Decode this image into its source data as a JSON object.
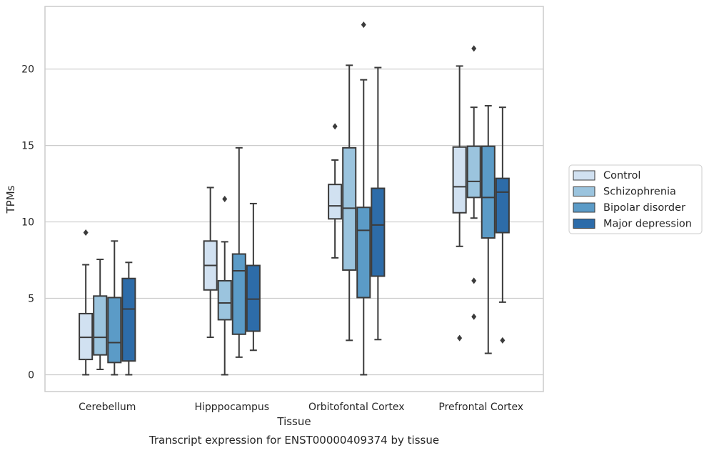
{
  "chart_data": {
    "type": "box",
    "categories": [
      "Cerebellum",
      "Hipppocampus",
      "Orbitofontal Cortex",
      "Prefrontal Cortex"
    ],
    "xlabel": "Tissue",
    "ylabel": "TPMs",
    "caption": "Transcript expression for ENST00000409374 by tissue",
    "ylim": [
      -1.1,
      24.1
    ],
    "yticks": [
      0,
      5,
      10,
      15,
      20
    ],
    "grid": "y",
    "legend_position": "right",
    "series": [
      {
        "name": "Control",
        "color": "#d1e1f1",
        "boxes": [
          {
            "whislo": 0.0,
            "q1": 1.0,
            "med": 2.45,
            "q3": 4.0,
            "whishi": 7.2,
            "fliers": [
              9.3
            ]
          },
          {
            "whislo": 2.45,
            "q1": 5.55,
            "med": 7.15,
            "q3": 8.75,
            "whishi": 12.25,
            "fliers": []
          },
          {
            "whislo": 7.65,
            "q1": 10.2,
            "med": 11.05,
            "q3": 12.45,
            "whishi": 14.05,
            "fliers": [
              16.25
            ]
          },
          {
            "whislo": 8.4,
            "q1": 10.6,
            "med": 12.3,
            "q3": 14.9,
            "whishi": 20.2,
            "fliers": [
              2.4
            ]
          }
        ]
      },
      {
        "name": "Schizophrenia",
        "color": "#9bc4de",
        "boxes": [
          {
            "whislo": 0.35,
            "q1": 1.3,
            "med": 2.45,
            "q3": 5.15,
            "whishi": 7.55,
            "fliers": []
          },
          {
            "whislo": 0.0,
            "q1": 3.6,
            "med": 4.7,
            "q3": 6.15,
            "whishi": 8.7,
            "fliers": [
              11.5
            ]
          },
          {
            "whislo": 2.25,
            "q1": 6.85,
            "med": 10.9,
            "q3": 14.85,
            "whishi": 20.25,
            "fliers": []
          },
          {
            "whislo": 10.25,
            "q1": 11.6,
            "med": 12.65,
            "q3": 14.95,
            "whishi": 17.5,
            "fliers": [
              21.35,
              6.15,
              3.8
            ]
          }
        ]
      },
      {
        "name": "Bipolar disorder",
        "color": "#5b9bc7",
        "boxes": [
          {
            "whislo": 0.0,
            "q1": 0.8,
            "med": 2.1,
            "q3": 5.05,
            "whishi": 8.75,
            "fliers": []
          },
          {
            "whislo": 1.15,
            "q1": 2.65,
            "med": 6.8,
            "q3": 7.9,
            "whishi": 14.85,
            "fliers": []
          },
          {
            "whislo": 0.0,
            "q1": 5.05,
            "med": 9.45,
            "q3": 10.95,
            "whishi": 19.3,
            "fliers": [
              22.9
            ]
          },
          {
            "whislo": 1.4,
            "q1": 8.95,
            "med": 11.6,
            "q3": 14.95,
            "whishi": 17.6,
            "fliers": []
          }
        ]
      },
      {
        "name": "Major depression",
        "color": "#2d6ca9",
        "boxes": [
          {
            "whislo": 0.0,
            "q1": 0.9,
            "med": 4.3,
            "q3": 6.3,
            "whishi": 7.35,
            "fliers": []
          },
          {
            "whislo": 1.6,
            "q1": 2.85,
            "med": 4.95,
            "q3": 7.15,
            "whishi": 11.2,
            "fliers": []
          },
          {
            "whislo": 2.3,
            "q1": 6.45,
            "med": 9.8,
            "q3": 12.2,
            "whishi": 20.1,
            "fliers": []
          },
          {
            "whislo": 4.75,
            "q1": 9.3,
            "med": 11.95,
            "q3": 12.85,
            "whishi": 17.5,
            "fliers": [
              2.25
            ]
          }
        ]
      }
    ]
  }
}
